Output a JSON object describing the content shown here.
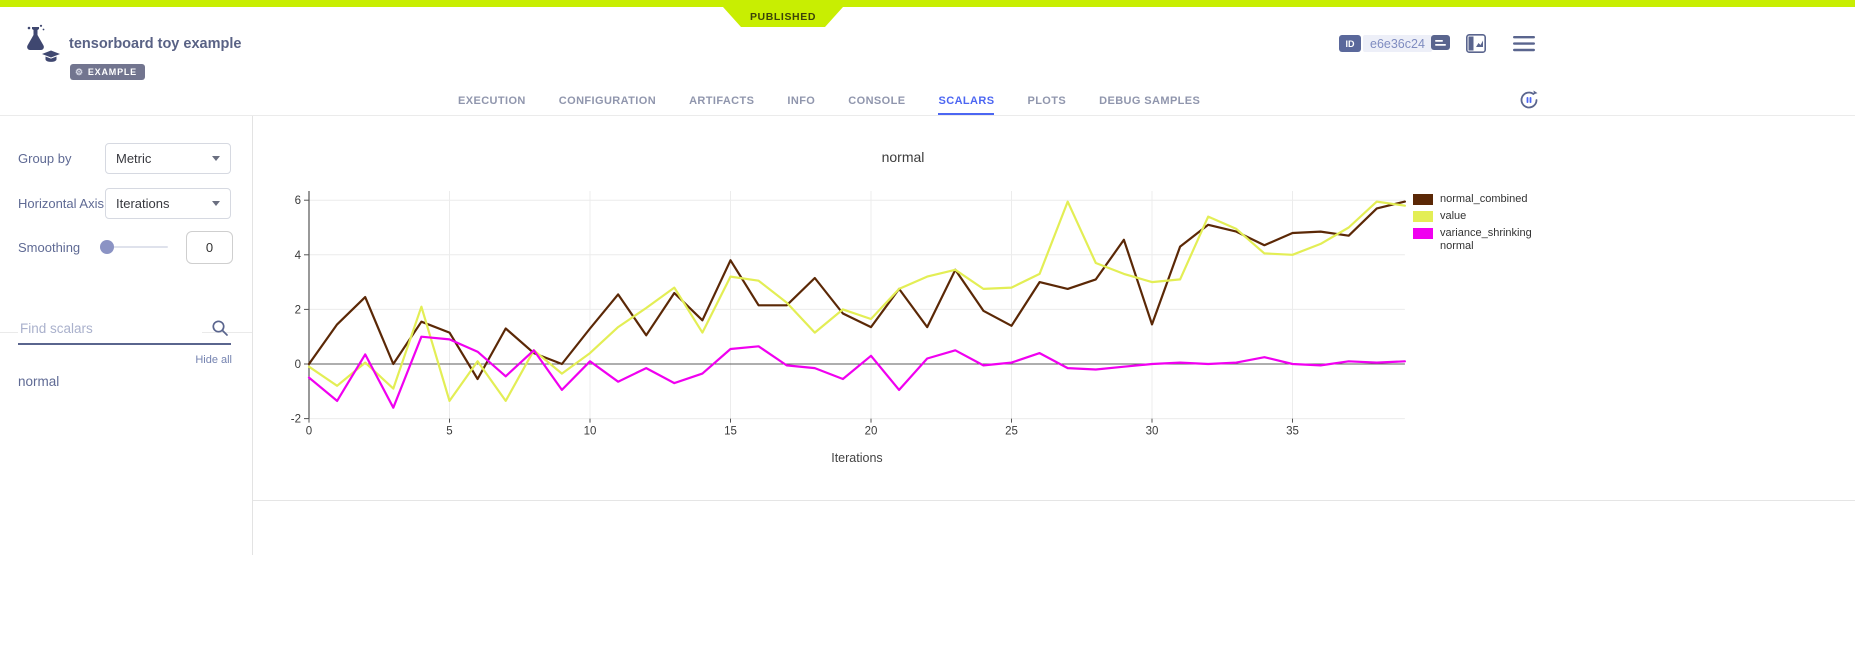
{
  "ribbon": {
    "status": "PUBLISHED"
  },
  "header": {
    "title": "tensorboard toy example",
    "badge": "EXAMPLE",
    "id_label": "ID",
    "id_value": "e6e36c24"
  },
  "tabs": {
    "items": [
      {
        "label": "EXECUTION"
      },
      {
        "label": "CONFIGURATION"
      },
      {
        "label": "ARTIFACTS"
      },
      {
        "label": "INFO"
      },
      {
        "label": "CONSOLE"
      },
      {
        "label": "SCALARS"
      },
      {
        "label": "PLOTS"
      },
      {
        "label": "DEBUG SAMPLES"
      }
    ],
    "active": "SCALARS"
  },
  "sidebar": {
    "group_by_label": "Group by",
    "group_by_value": "Metric",
    "horizontal_axis_label": "Horizontal Axis",
    "horizontal_axis_value": "Iterations",
    "smoothing_label": "Smoothing",
    "smoothing_value": "0",
    "find_placeholder": "Find scalars",
    "hide_all": "Hide all",
    "scalars": [
      {
        "name": "normal"
      }
    ]
  },
  "colors": {
    "published_green": "#c8ee02",
    "active_tab_blue": "#4c66f2",
    "slate_text": "#5a658e",
    "series_brown": "#5b2806",
    "series_yellow": "#e3ee55",
    "series_magenta": "#f000f0"
  },
  "chart_data": {
    "type": "line",
    "title": "normal",
    "xlabel": "Iterations",
    "ylabel": "",
    "xlim": [
      0,
      39
    ],
    "ylim": [
      -2,
      6.3
    ],
    "xticks": [
      0,
      5,
      10,
      15,
      20,
      25,
      30,
      35
    ],
    "yticks": [
      -2,
      0,
      2,
      4,
      6
    ],
    "grid": true,
    "legend_position": "top-right",
    "x": [
      0,
      1,
      2,
      3,
      4,
      5,
      6,
      7,
      8,
      9,
      10,
      11,
      12,
      13,
      14,
      15,
      16,
      17,
      18,
      19,
      20,
      21,
      22,
      23,
      24,
      25,
      26,
      27,
      28,
      29,
      30,
      31,
      32,
      33,
      34,
      35,
      36,
      37,
      38,
      39
    ],
    "series": [
      {
        "name": "normal_combined",
        "color": "#5b2806",
        "values": [
          0,
          1.45,
          2.45,
          0,
          1.55,
          1.15,
          -0.55,
          1.3,
          0.4,
          0,
          1.3,
          2.55,
          1.05,
          2.6,
          1.6,
          3.8,
          2.15,
          2.15,
          3.15,
          1.85,
          1.35,
          2.75,
          1.35,
          3.45,
          1.95,
          1.4,
          3.0,
          2.75,
          3.1,
          4.55,
          1.45,
          4.3,
          5.1,
          4.85,
          4.35,
          4.8,
          4.85,
          4.7,
          5.7,
          5.95
        ]
      },
      {
        "name": "value",
        "color": "#e3ee55",
        "values": [
          -0.1,
          -0.8,
          0.05,
          -0.9,
          2.1,
          -1.35,
          0.1,
          -1.35,
          0.5,
          -0.35,
          0.4,
          1.35,
          2.05,
          2.8,
          1.15,
          3.2,
          3.05,
          2.25,
          1.15,
          2.0,
          1.65,
          2.75,
          3.2,
          3.45,
          2.75,
          2.8,
          3.3,
          5.95,
          3.7,
          3.3,
          3.0,
          3.1,
          5.4,
          4.95,
          4.05,
          4.0,
          4.4,
          5.0,
          5.95,
          5.8
        ]
      },
      {
        "name": "variance_shrinking normal",
        "color": "#f000f0",
        "values": [
          -0.5,
          -1.35,
          0.35,
          -1.6,
          1.0,
          0.9,
          0.45,
          -0.45,
          0.5,
          -0.95,
          0.1,
          -0.65,
          -0.15,
          -0.7,
          -0.35,
          0.55,
          0.65,
          -0.05,
          -0.15,
          -0.55,
          0.3,
          -0.95,
          0.2,
          0.5,
          -0.05,
          0.05,
          0.4,
          -0.15,
          -0.2,
          -0.1,
          0.0,
          0.05,
          0.0,
          0.05,
          0.25,
          0.0,
          -0.05,
          0.1,
          0.05,
          0.1
        ]
      }
    ]
  }
}
